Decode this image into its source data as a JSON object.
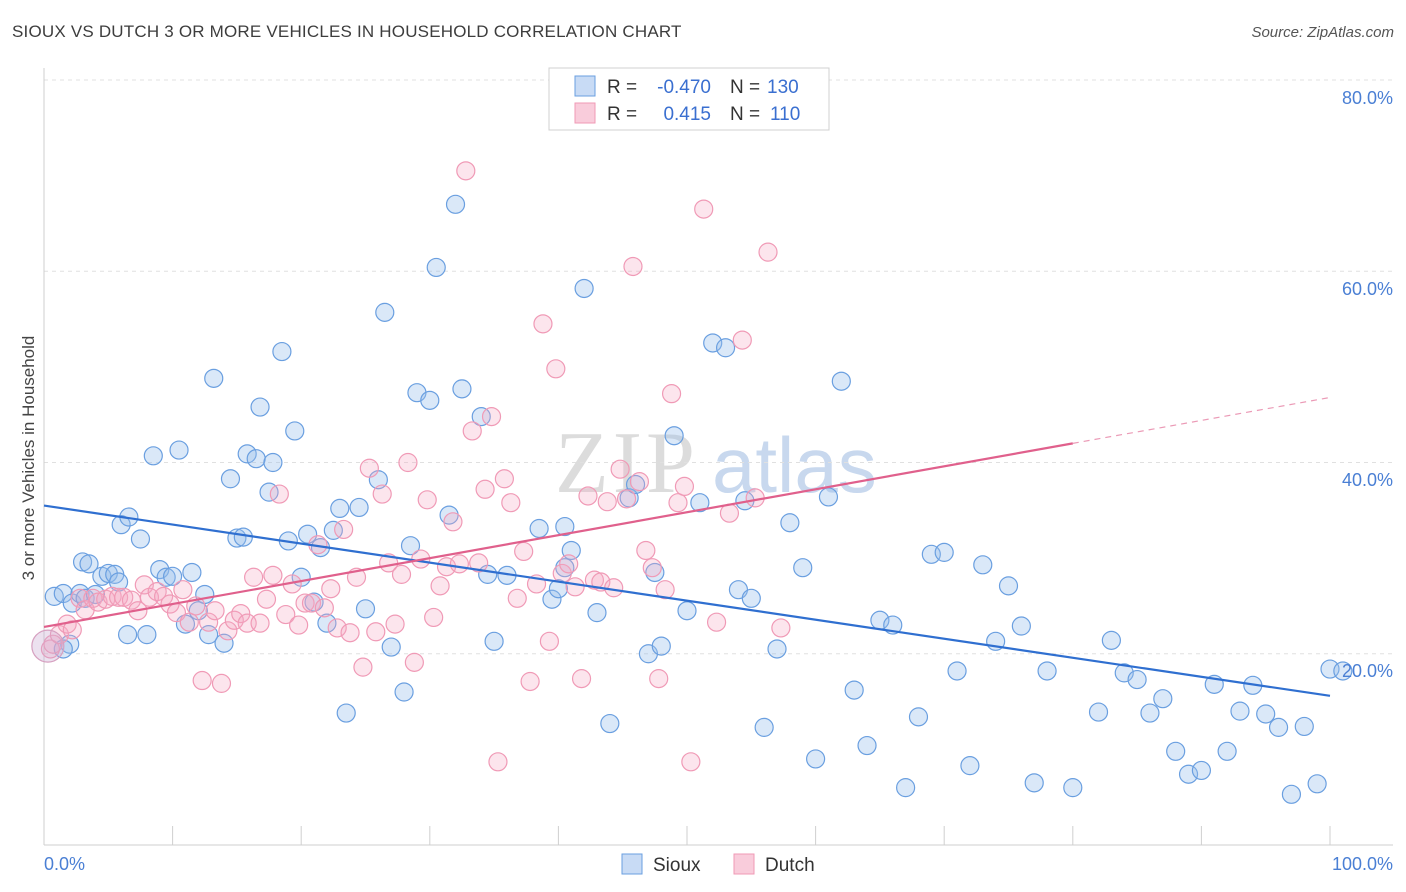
{
  "header": {
    "title": "SIOUX VS DUTCH 3 OR MORE VEHICLES IN HOUSEHOLD CORRELATION CHART",
    "source": "Source: ZipAtlas.com"
  },
  "watermark": {
    "zip": "ZIP",
    "atlas": "atlas"
  },
  "colors": {
    "sioux": "#6a9fe0",
    "sioux_line": "#2f6fd0",
    "dutch": "#f09ab6",
    "dutch_line": "#e0608c"
  },
  "legend": {
    "rows": [
      {
        "r_label": "R =",
        "r_value": "-0.470",
        "n_label": "N =",
        "n_value": "130"
      },
      {
        "r_label": "R =",
        "r_value": "0.415",
        "n_label": "N =",
        "n_value": "110"
      }
    ]
  },
  "chart_data": {
    "type": "scatter",
    "ylabel": "3 or more Vehicles in Household",
    "xlim": [
      0,
      100
    ],
    "ylim": [
      0,
      80
    ],
    "x_tick_labels": [
      "0.0%",
      "100.0%"
    ],
    "y_tick_labels": [
      "20.0%",
      "40.0%",
      "60.0%",
      "80.0%"
    ],
    "y_ticks": [
      20,
      40,
      60,
      80
    ],
    "grid": true,
    "legend_placement": "bottom-center",
    "series": [
      {
        "name": "Sioux",
        "color": "#6a9fe0",
        "trend": {
          "x": [
            0,
            100
          ],
          "y": [
            35.5,
            15.6
          ]
        },
        "points": [
          [
            0.8,
            26.0
          ],
          [
            1.5,
            26.3
          ],
          [
            2.2,
            25.3
          ],
          [
            2.8,
            26.3
          ],
          [
            3.2,
            25.8
          ],
          [
            2.0,
            21.0
          ],
          [
            1.5,
            20.5
          ],
          [
            3.0,
            29.6
          ],
          [
            3.5,
            29.4
          ],
          [
            4.5,
            28.1
          ],
          [
            5.0,
            28.4
          ],
          [
            5.5,
            28.3
          ],
          [
            5.8,
            27.5
          ],
          [
            4.0,
            26.2
          ],
          [
            6.0,
            33.5
          ],
          [
            6.6,
            34.3
          ],
          [
            7.5,
            32.0
          ],
          [
            6.5,
            22.0
          ],
          [
            8.0,
            22.0
          ],
          [
            8.5,
            40.7
          ],
          [
            9.0,
            28.8
          ],
          [
            9.5,
            28.0
          ],
          [
            10.0,
            28.1
          ],
          [
            10.5,
            41.3
          ],
          [
            11.0,
            23.1
          ],
          [
            11.5,
            28.5
          ],
          [
            12.0,
            24.5
          ],
          [
            12.5,
            26.2
          ],
          [
            12.8,
            22.0
          ],
          [
            13.2,
            48.8
          ],
          [
            14.0,
            21.1
          ],
          [
            14.5,
            38.3
          ],
          [
            15.0,
            32.1
          ],
          [
            15.5,
            32.2
          ],
          [
            15.8,
            40.9
          ],
          [
            16.5,
            40.4
          ],
          [
            16.8,
            45.8
          ],
          [
            17.5,
            36.9
          ],
          [
            17.8,
            40.0
          ],
          [
            18.5,
            51.6
          ],
          [
            19.0,
            31.8
          ],
          [
            19.5,
            43.3
          ],
          [
            20.0,
            28.0
          ],
          [
            20.5,
            32.5
          ],
          [
            21.0,
            25.4
          ],
          [
            21.5,
            31.1
          ],
          [
            22.0,
            23.2
          ],
          [
            22.5,
            32.9
          ],
          [
            23.0,
            35.2
          ],
          [
            23.5,
            13.8
          ],
          [
            24.5,
            35.3
          ],
          [
            25.0,
            24.7
          ],
          [
            26.0,
            38.2
          ],
          [
            26.5,
            55.7
          ],
          [
            27.0,
            20.7
          ],
          [
            28.0,
            16.0
          ],
          [
            28.5,
            31.3
          ],
          [
            29.0,
            47.3
          ],
          [
            30.0,
            46.5
          ],
          [
            30.5,
            60.4
          ],
          [
            31.5,
            34.5
          ],
          [
            32.0,
            67.0
          ],
          [
            32.5,
            47.7
          ],
          [
            34.0,
            44.8
          ],
          [
            34.5,
            28.3
          ],
          [
            35.0,
            21.3
          ],
          [
            36.0,
            28.2
          ],
          [
            38.5,
            33.1
          ],
          [
            39.5,
            25.7
          ],
          [
            40.0,
            26.8
          ],
          [
            40.5,
            33.3
          ],
          [
            41.0,
            30.8
          ],
          [
            42.0,
            58.2
          ],
          [
            44.0,
            12.7
          ],
          [
            43.0,
            24.3
          ],
          [
            45.5,
            36.3
          ],
          [
            46.0,
            37.7
          ],
          [
            47.0,
            20.0
          ],
          [
            47.5,
            28.5
          ],
          [
            48.0,
            20.8
          ],
          [
            49.0,
            42.8
          ],
          [
            50.0,
            24.5
          ],
          [
            51.0,
            35.8
          ],
          [
            52.0,
            52.5
          ],
          [
            53.0,
            52.0
          ],
          [
            54.0,
            26.7
          ],
          [
            54.5,
            36.0
          ],
          [
            55.0,
            25.8
          ],
          [
            56.0,
            12.3
          ],
          [
            57.0,
            20.5
          ],
          [
            58.0,
            33.7
          ],
          [
            59.0,
            29.0
          ],
          [
            60.0,
            9.0
          ],
          [
            61.0,
            36.4
          ],
          [
            62.0,
            48.5
          ],
          [
            63.0,
            16.2
          ],
          [
            64.0,
            10.4
          ],
          [
            65.0,
            23.5
          ],
          [
            66.0,
            23.0
          ],
          [
            67.0,
            6.0
          ],
          [
            68.0,
            13.4
          ],
          [
            69.0,
            30.4
          ],
          [
            70.0,
            30.6
          ],
          [
            71.0,
            18.2
          ],
          [
            72.0,
            8.3
          ],
          [
            73.0,
            29.3
          ],
          [
            74.0,
            21.3
          ],
          [
            75.0,
            27.1
          ],
          [
            76.0,
            22.9
          ],
          [
            77.0,
            6.5
          ],
          [
            78.0,
            18.2
          ],
          [
            80.0,
            6.0
          ],
          [
            82.0,
            13.9
          ],
          [
            83.0,
            21.4
          ],
          [
            84.0,
            18.0
          ],
          [
            85.0,
            17.3
          ],
          [
            86.0,
            13.8
          ],
          [
            87.0,
            15.3
          ],
          [
            88.0,
            9.8
          ],
          [
            89.0,
            7.4
          ],
          [
            90.0,
            7.8
          ],
          [
            91.0,
            16.8
          ],
          [
            92.0,
            9.8
          ],
          [
            93.0,
            14.0
          ],
          [
            94.0,
            16.7
          ],
          [
            95.0,
            13.7
          ],
          [
            96.0,
            12.3
          ],
          [
            97.0,
            5.3
          ],
          [
            98.0,
            12.4
          ],
          [
            99.0,
            6.4
          ],
          [
            100.0,
            18.4
          ],
          [
            101.0,
            18.2
          ],
          [
            40.5,
            29.0
          ]
        ]
      },
      {
        "name": "Dutch",
        "color": "#f09ab6",
        "trend": {
          "x": [
            0,
            80
          ],
          "y": [
            22.8,
            42.0
          ],
          "x_dashed": [
            80,
            100
          ],
          "y_dashed": [
            42.0,
            46.8
          ]
        },
        "points": [
          [
            0.5,
            20.5
          ],
          [
            0.7,
            21.0
          ],
          [
            1.2,
            22.0
          ],
          [
            1.8,
            23.1
          ],
          [
            2.2,
            22.5
          ],
          [
            2.8,
            25.8
          ],
          [
            3.2,
            24.6
          ],
          [
            3.8,
            25.8
          ],
          [
            4.2,
            25.4
          ],
          [
            4.8,
            25.7
          ],
          [
            5.3,
            26.0
          ],
          [
            5.8,
            25.9
          ],
          [
            6.2,
            25.9
          ],
          [
            6.8,
            25.6
          ],
          [
            7.3,
            24.5
          ],
          [
            7.8,
            27.2
          ],
          [
            8.2,
            25.9
          ],
          [
            8.8,
            26.5
          ],
          [
            9.3,
            26.0
          ],
          [
            9.8,
            25.2
          ],
          [
            10.3,
            24.3
          ],
          [
            10.8,
            26.7
          ],
          [
            11.3,
            23.3
          ],
          [
            11.8,
            25.0
          ],
          [
            12.3,
            17.2
          ],
          [
            12.8,
            23.3
          ],
          [
            13.3,
            24.5
          ],
          [
            13.8,
            16.9
          ],
          [
            14.3,
            22.4
          ],
          [
            14.8,
            23.5
          ],
          [
            15.3,
            24.2
          ],
          [
            15.8,
            23.2
          ],
          [
            16.3,
            28.0
          ],
          [
            16.8,
            23.2
          ],
          [
            17.3,
            25.7
          ],
          [
            17.8,
            28.2
          ],
          [
            18.3,
            36.7
          ],
          [
            18.8,
            24.1
          ],
          [
            19.3,
            27.3
          ],
          [
            19.8,
            23.0
          ],
          [
            20.3,
            25.3
          ],
          [
            20.8,
            25.3
          ],
          [
            21.3,
            31.4
          ],
          [
            21.8,
            24.8
          ],
          [
            22.3,
            26.8
          ],
          [
            22.8,
            22.7
          ],
          [
            23.3,
            33.0
          ],
          [
            23.8,
            22.2
          ],
          [
            24.3,
            28.0
          ],
          [
            24.8,
            18.6
          ],
          [
            25.3,
            39.4
          ],
          [
            25.8,
            22.3
          ],
          [
            26.3,
            36.7
          ],
          [
            26.8,
            29.5
          ],
          [
            27.3,
            23.1
          ],
          [
            27.8,
            28.3
          ],
          [
            28.3,
            40.0
          ],
          [
            28.8,
            19.1
          ],
          [
            29.3,
            29.9
          ],
          [
            29.8,
            36.1
          ],
          [
            30.3,
            23.8
          ],
          [
            30.8,
            27.1
          ],
          [
            31.3,
            29.1
          ],
          [
            31.8,
            33.8
          ],
          [
            32.3,
            29.4
          ],
          [
            32.8,
            70.5
          ],
          [
            33.3,
            43.3
          ],
          [
            33.8,
            29.5
          ],
          [
            34.3,
            37.2
          ],
          [
            34.8,
            44.8
          ],
          [
            35.3,
            8.7
          ],
          [
            35.8,
            38.3
          ],
          [
            36.3,
            35.8
          ],
          [
            36.8,
            25.8
          ],
          [
            37.3,
            30.7
          ],
          [
            37.8,
            17.1
          ],
          [
            38.3,
            27.3
          ],
          [
            38.8,
            54.5
          ],
          [
            39.3,
            21.3
          ],
          [
            39.8,
            49.8
          ],
          [
            40.3,
            28.4
          ],
          [
            40.8,
            29.4
          ],
          [
            41.3,
            27.0
          ],
          [
            41.8,
            17.4
          ],
          [
            42.3,
            36.5
          ],
          [
            42.8,
            27.7
          ],
          [
            43.3,
            27.5
          ],
          [
            43.8,
            35.9
          ],
          [
            44.3,
            26.9
          ],
          [
            44.8,
            39.3
          ],
          [
            45.3,
            36.2
          ],
          [
            45.8,
            60.5
          ],
          [
            46.3,
            38.0
          ],
          [
            46.8,
            30.8
          ],
          [
            47.3,
            29.0
          ],
          [
            47.8,
            17.4
          ],
          [
            48.3,
            26.7
          ],
          [
            48.8,
            47.2
          ],
          [
            49.3,
            35.8
          ],
          [
            49.8,
            37.5
          ],
          [
            50.3,
            8.7
          ],
          [
            51.3,
            66.5
          ],
          [
            52.3,
            23.3
          ],
          [
            53.3,
            34.7
          ],
          [
            54.3,
            52.8
          ],
          [
            55.3,
            36.3
          ],
          [
            56.3,
            62.0
          ],
          [
            57.3,
            22.7
          ]
        ]
      }
    ]
  },
  "bottom_legend": {
    "items": [
      "Sioux",
      "Dutch"
    ]
  }
}
